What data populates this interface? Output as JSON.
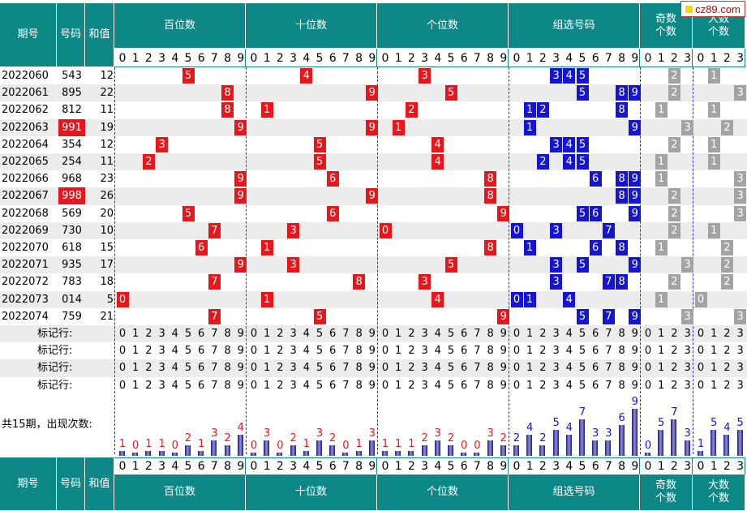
{
  "logo": "cz89.com",
  "header": {
    "issue": "期号",
    "number": "号码",
    "sum": "和值",
    "hundreds": "百位数",
    "tens": "十位数",
    "units": "个位数",
    "group": "组选号码",
    "odd": "奇数\n个数",
    "big": "大数\n个数"
  },
  "rows": [
    {
      "issue": "2022060",
      "number": "543",
      "sum": "12",
      "hi": false
    },
    {
      "issue": "2022061",
      "number": "895",
      "sum": "22",
      "hi": false
    },
    {
      "issue": "2022062",
      "number": "812",
      "sum": "11",
      "hi": false
    },
    {
      "issue": "2022063",
      "number": "991",
      "sum": "19",
      "hi": true
    },
    {
      "issue": "2022064",
      "number": "354",
      "sum": "12",
      "hi": false
    },
    {
      "issue": "2022065",
      "number": "254",
      "sum": "11",
      "hi": false
    },
    {
      "issue": "2022066",
      "number": "968",
      "sum": "23",
      "hi": false
    },
    {
      "issue": "2022067",
      "number": "998",
      "sum": "26",
      "hi": true
    },
    {
      "issue": "2022068",
      "number": "569",
      "sum": "20",
      "hi": false
    },
    {
      "issue": "2022069",
      "number": "730",
      "sum": "10",
      "hi": false
    },
    {
      "issue": "2022070",
      "number": "618",
      "sum": "15",
      "hi": false
    },
    {
      "issue": "2022071",
      "number": "935",
      "sum": "17",
      "hi": false
    },
    {
      "issue": "2022072",
      "number": "783",
      "sum": "18",
      "hi": false
    },
    {
      "issue": "2022073",
      "number": "014",
      "sum": "5",
      "hi": false
    },
    {
      "issue": "2022074",
      "number": "759",
      "sum": "21",
      "hi": false
    }
  ],
  "mark_label": "标记行:",
  "count_label": "共15期，出现次数:",
  "colors": {
    "teal": "#0e8787",
    "red": "#e8161a",
    "blue": "#1414d2",
    "gray": "#a3a3a3"
  },
  "chart_data": {
    "type": "bar",
    "title": "共15期，出现次数:",
    "groups": [
      {
        "name": "百位数",
        "categories": [
          "0",
          "1",
          "2",
          "3",
          "4",
          "5",
          "6",
          "7",
          "8",
          "9"
        ],
        "values": [
          1,
          0,
          1,
          1,
          0,
          2,
          1,
          3,
          2,
          4
        ]
      },
      {
        "name": "十位数",
        "categories": [
          "0",
          "1",
          "2",
          "3",
          "4",
          "5",
          "6",
          "7",
          "8",
          "9"
        ],
        "values": [
          0,
          3,
          0,
          2,
          1,
          3,
          2,
          0,
          1,
          3
        ]
      },
      {
        "name": "个位数",
        "categories": [
          "0",
          "1",
          "2",
          "3",
          "4",
          "5",
          "6",
          "7",
          "8",
          "9"
        ],
        "values": [
          1,
          1,
          1,
          2,
          3,
          2,
          0,
          0,
          3,
          2
        ]
      },
      {
        "name": "组选号码",
        "categories": [
          "0",
          "1",
          "2",
          "3",
          "4",
          "5",
          "6",
          "7",
          "8",
          "9"
        ],
        "values": [
          2,
          4,
          2,
          5,
          4,
          7,
          3,
          3,
          6,
          9
        ]
      },
      {
        "name": "奇数个数",
        "categories": [
          "0",
          "1",
          "2",
          "3"
        ],
        "values": [
          0,
          5,
          7,
          3
        ]
      },
      {
        "name": "大数个数",
        "categories": [
          "0",
          "1",
          "2",
          "3"
        ],
        "values": [
          1,
          5,
          4,
          5
        ]
      }
    ]
  }
}
